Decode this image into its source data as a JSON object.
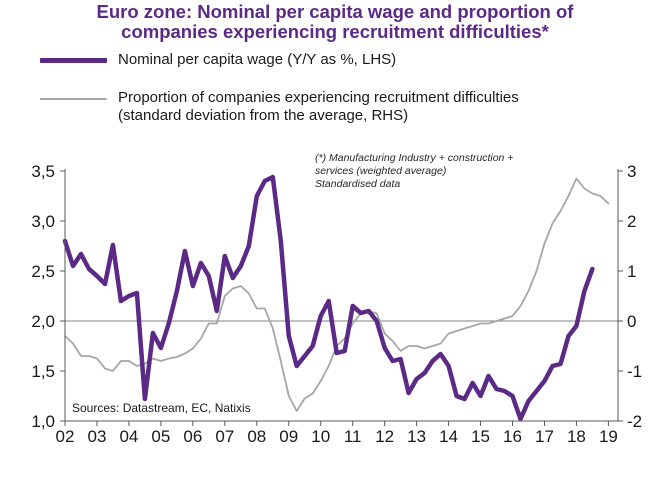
{
  "title_line1": "Euro zone: Nominal per capita wage and proportion of",
  "title_line2": "companies experiencing recruitment difficulties*",
  "legend": {
    "series1_label": "Nominal per capita wage (Y/Y as %, LHS)",
    "series2_label_line1": "Proportion of companies experiencing recruitment difficulties",
    "series2_label_line2": "(standard deviation from the average, RHS)"
  },
  "note": {
    "line1": "(*) Manufacturing Industry + construction +",
    "line2": "services (weighted average)",
    "line3": "Standardised data"
  },
  "sources": "Sources: Datastream, EC, Natixis",
  "colors": {
    "wage": "#5b2a86",
    "recruitment": "#a6a6a6",
    "axis": "#595959",
    "gridline": "#808080"
  },
  "chart_data": {
    "type": "line",
    "title": "Euro zone: Nominal per capita wage and proportion of companies experiencing recruitment difficulties*",
    "x_tick_labels": [
      "02",
      "03",
      "04",
      "05",
      "06",
      "07",
      "08",
      "09",
      "10",
      "11",
      "12",
      "13",
      "14",
      "15",
      "16",
      "17",
      "18",
      "19"
    ],
    "xlim": [
      2002,
      2019.3
    ],
    "y_left": {
      "ylim": [
        1.0,
        3.5
      ],
      "ticks": [
        1.0,
        1.5,
        2.0,
        2.5,
        3.0,
        3.5
      ],
      "tick_labels": [
        "1,0",
        "1,5",
        "2,0",
        "2,5",
        "3,0",
        "3,5"
      ],
      "reference_line": 2.0
    },
    "y_right": {
      "ylim": [
        -2,
        3
      ],
      "ticks": [
        -2,
        -1,
        0,
        1,
        2,
        3
      ],
      "tick_labels": [
        "-2",
        "-1",
        "0",
        "1",
        "2",
        "3"
      ]
    },
    "series": [
      {
        "name": "Nominal per capita wage (Y/Y as %, LHS)",
        "axis": "left",
        "x": [
          2002.0,
          2002.25,
          2002.5,
          2002.75,
          2003.0,
          2003.25,
          2003.5,
          2003.75,
          2004.0,
          2004.25,
          2004.5,
          2004.75,
          2005.0,
          2005.25,
          2005.5,
          2005.75,
          2006.0,
          2006.25,
          2006.5,
          2006.75,
          2007.0,
          2007.25,
          2007.5,
          2007.75,
          2008.0,
          2008.25,
          2008.5,
          2008.75,
          2009.0,
          2009.25,
          2009.5,
          2009.75,
          2010.0,
          2010.25,
          2010.5,
          2010.75,
          2011.0,
          2011.25,
          2011.5,
          2011.75,
          2012.0,
          2012.25,
          2012.5,
          2012.75,
          2013.0,
          2013.25,
          2013.5,
          2013.75,
          2014.0,
          2014.25,
          2014.5,
          2014.75,
          2015.0,
          2015.25,
          2015.5,
          2015.75,
          2016.0,
          2016.25,
          2016.5,
          2016.75,
          2017.0,
          2017.25,
          2017.5,
          2017.75,
          2018.0,
          2018.25,
          2018.5
        ],
        "values": [
          2.8,
          2.55,
          2.67,
          2.52,
          2.45,
          2.37,
          2.76,
          2.2,
          2.25,
          2.28,
          1.22,
          1.88,
          1.73,
          1.98,
          2.3,
          2.7,
          2.35,
          2.58,
          2.45,
          2.1,
          2.65,
          2.43,
          2.55,
          2.75,
          3.25,
          3.4,
          3.44,
          2.8,
          1.85,
          1.55,
          1.65,
          1.75,
          2.05,
          2.2,
          1.68,
          1.7,
          2.15,
          2.08,
          2.1,
          2.0,
          1.73,
          1.6,
          1.62,
          1.28,
          1.42,
          1.48,
          1.6,
          1.67,
          1.55,
          1.25,
          1.22,
          1.38,
          1.25,
          1.45,
          1.32,
          1.3,
          1.25,
          1.02,
          1.2,
          1.3,
          1.4,
          1.55,
          1.57,
          1.85,
          1.95,
          2.3,
          2.52
        ],
        "color": "#5b2a86"
      },
      {
        "name": "Proportion of companies experiencing recruitment difficulties (standard deviation from the average, RHS)",
        "axis": "right",
        "x": [
          2002.0,
          2002.25,
          2002.5,
          2002.75,
          2003.0,
          2003.25,
          2003.5,
          2003.75,
          2004.0,
          2004.25,
          2004.5,
          2004.75,
          2005.0,
          2005.25,
          2005.5,
          2005.75,
          2006.0,
          2006.25,
          2006.5,
          2006.75,
          2007.0,
          2007.25,
          2007.5,
          2007.75,
          2008.0,
          2008.25,
          2008.5,
          2008.75,
          2009.0,
          2009.25,
          2009.5,
          2009.75,
          2010.0,
          2010.25,
          2010.5,
          2010.75,
          2011.0,
          2011.25,
          2011.5,
          2011.75,
          2012.0,
          2012.25,
          2012.5,
          2012.75,
          2013.0,
          2013.25,
          2013.5,
          2013.75,
          2014.0,
          2014.25,
          2014.5,
          2014.75,
          2015.0,
          2015.25,
          2015.5,
          2015.75,
          2016.0,
          2016.25,
          2016.5,
          2016.75,
          2017.0,
          2017.25,
          2017.5,
          2017.75,
          2018.0,
          2018.25,
          2018.5,
          2018.75,
          2019.0
        ],
        "values": [
          -0.3,
          -0.45,
          -0.7,
          -0.7,
          -0.75,
          -0.95,
          -1.0,
          -0.8,
          -0.8,
          -0.9,
          -0.85,
          -0.75,
          -0.8,
          -0.75,
          -0.72,
          -0.65,
          -0.55,
          -0.35,
          -0.05,
          -0.05,
          0.5,
          0.65,
          0.7,
          0.55,
          0.25,
          0.25,
          -0.15,
          -0.8,
          -1.5,
          -1.8,
          -1.55,
          -1.45,
          -1.2,
          -0.9,
          -0.5,
          -0.35,
          -0.05,
          0.15,
          0.2,
          0.15,
          -0.25,
          -0.4,
          -0.6,
          -0.5,
          -0.5,
          -0.55,
          -0.5,
          -0.45,
          -0.25,
          -0.2,
          -0.15,
          -0.1,
          -0.05,
          -0.05,
          0.0,
          0.05,
          0.1,
          0.3,
          0.6,
          1.0,
          1.55,
          1.95,
          2.2,
          2.5,
          2.85,
          2.65,
          2.55,
          2.5,
          2.35
        ],
        "color": "#a6a6a6"
      }
    ]
  }
}
